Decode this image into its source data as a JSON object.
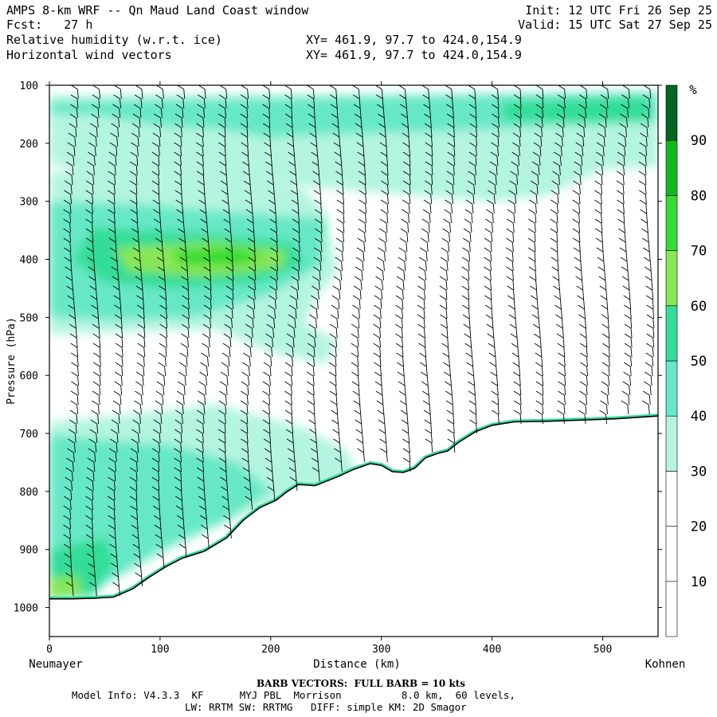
{
  "header": {
    "title": "AMPS 8-km WRF -- Qn Maud Land Coast window",
    "fcst": "Fcst:   27 h",
    "line3": "Relative humidity (w.r.t. ice)",
    "line4": "Horizontal wind vectors",
    "xy1": "XY= 461.9, 97.7 to 424.0,154.9",
    "xy2": "XY= 461.9, 97.7 to 424.0,154.9",
    "init": "Init: 12 UTC Fri 26 Sep 25",
    "valid": "Valid: 15 UTC Sat 27 Sep 25"
  },
  "chart_data": {
    "type": "heatmap",
    "title": "Relative humidity (w.r.t. ice) and horizontal wind vectors, cross section Neumayer to Kohnen",
    "xlabel": "Distance (km)",
    "ylabel": "Pressure (hPa)",
    "xlim": [
      0,
      550
    ],
    "ylim": [
      1050,
      100
    ],
    "xticks": [
      0,
      100,
      200,
      300,
      400,
      500
    ],
    "yticks": [
      100,
      200,
      300,
      400,
      500,
      600,
      700,
      800,
      900,
      1000
    ],
    "left_label": "Neumayer",
    "right_label": "Kohnen",
    "colorbar": {
      "unit": "%",
      "levels": [
        10,
        20,
        30,
        40,
        50,
        60,
        70,
        80,
        90
      ],
      "colors": [
        "#ffffff",
        "#ffffff",
        "#ffffff",
        "#b3f5e0",
        "#66e8c6",
        "#33dd99",
        "#88e655",
        "#33dd33",
        "#10b81e",
        "#006622"
      ]
    },
    "terrain": {
      "x": [
        0,
        20,
        40,
        58,
        75,
        90,
        105,
        120,
        140,
        160,
        175,
        190,
        205,
        215,
        225,
        240,
        260,
        275,
        290,
        300,
        310,
        320,
        330,
        340,
        350,
        360,
        370,
        385,
        400,
        420,
        450,
        480,
        510,
        550
      ],
      "sfc": [
        985,
        985,
        984,
        982,
        968,
        948,
        930,
        915,
        903,
        880,
        850,
        828,
        815,
        800,
        788,
        790,
        775,
        762,
        752,
        755,
        766,
        767,
        760,
        742,
        735,
        730,
        715,
        697,
        686,
        680,
        679,
        677,
        675,
        670
      ]
    },
    "rh_regions": [
      {
        "band": "30-40",
        "desc": "upper layer 130-300 hPa across section, 450-550 hPa near coast"
      },
      {
        "band": "40-50",
        "desc": "320-500 hPa west of 200 km, 130-190 hPa jet level, boundary layer near coast"
      },
      {
        "band": "60-70",
        "desc": "centred near 400 hPa at 70-230 km"
      },
      {
        "band": "70-80",
        "desc": "core near 395 hPa at 120-180 km"
      },
      {
        "band": "50-60",
        "desc": "surface layer near 0-25 km"
      }
    ],
    "wind_columns_x": [
      22,
      42,
      62,
      82,
      102,
      122,
      142,
      162,
      182,
      202,
      222,
      242,
      262,
      282,
      302,
      322,
      342,
      362,
      382,
      402,
      422,
      442,
      462,
      482,
      502,
      522,
      542
    ],
    "barb_note": "BARB VECTORS:  FULL BARB = 10 kts"
  },
  "footer": {
    "barb": "BARB VECTORS:  FULL BARB = 10 kts",
    "model1": "Model Info: V4.3.3  KF      MYJ PBL  Morrison          8.0 km,  60 levels,",
    "model2": "LW: RRTM SW: RRTMG   DIFF: simple KM: 2D Smagor"
  }
}
